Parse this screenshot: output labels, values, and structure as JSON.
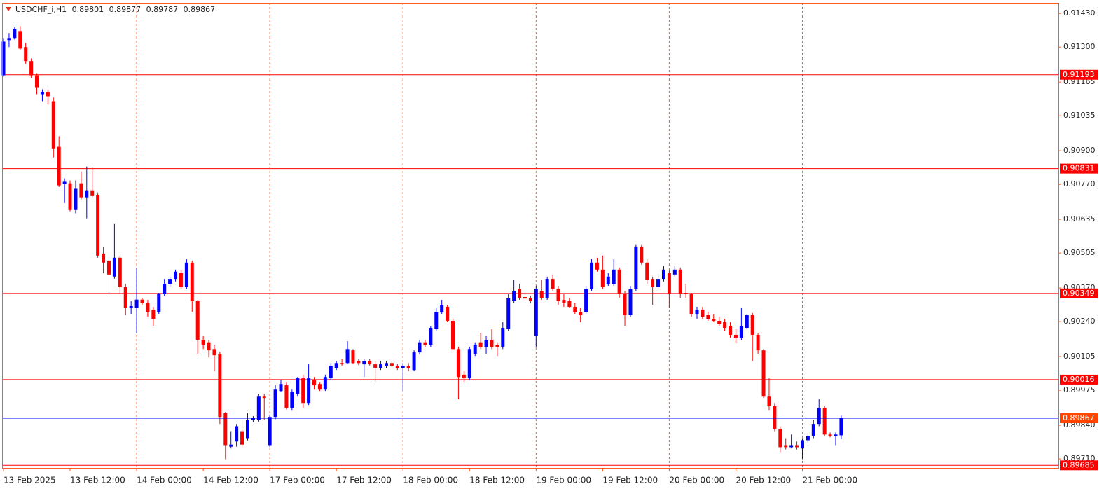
{
  "chart_data": {
    "type": "candlestick",
    "symbol": "USDCHF_i,H1",
    "categories": [
      "13 Feb 2025",
      null,
      null,
      null,
      null,
      null,
      null,
      null,
      null,
      null,
      null,
      null,
      "13 Feb 12:00",
      null,
      null,
      null,
      null,
      null,
      null,
      null,
      null,
      null,
      null,
      null,
      "14 Feb 00:00",
      null,
      null,
      null,
      null,
      null,
      null,
      null,
      null,
      null,
      null,
      null,
      "14 Feb 12:00",
      null,
      null,
      null,
      null,
      null,
      null,
      null,
      null,
      null,
      null,
      null,
      "17 Feb 00:00",
      null,
      null,
      null,
      null,
      null,
      null,
      null,
      null,
      null,
      null,
      null,
      "17 Feb 12:00",
      null,
      null,
      null,
      null,
      null,
      null,
      null,
      null,
      null,
      null,
      null,
      "18 Feb 00:00",
      null,
      null,
      null,
      null,
      null,
      null,
      null,
      null,
      null,
      null,
      null,
      "18 Feb 12:00",
      null,
      null,
      null,
      null,
      null,
      null,
      null,
      null,
      null,
      null,
      null,
      "19 Feb 00:00",
      null,
      null,
      null,
      null,
      null,
      null,
      null,
      null,
      null,
      null,
      null,
      "19 Feb 12:00",
      null,
      null,
      null,
      null,
      null,
      null,
      null,
      null,
      null,
      null,
      null,
      "20 Feb 00:00",
      null,
      null,
      null,
      null,
      null,
      null,
      null,
      null,
      null,
      null,
      null,
      "20 Feb 12:00",
      null,
      null,
      null,
      null,
      null,
      null,
      null,
      null,
      null,
      null,
      null,
      "21 Feb 00:00",
      null,
      null,
      null,
      null,
      null,
      null,
      null
    ],
    "open": [
      0.91191,
      0.91327,
      0.91335,
      0.91362,
      0.913,
      0.91246,
      0.91191,
      0.91118,
      0.91126,
      0.91091,
      0.90915,
      0.90771,
      0.90774,
      0.90671,
      0.90774,
      0.9072,
      0.90747,
      0.9073,
      0.90503,
      0.90476,
      0.90414,
      0.90487,
      0.90373,
      0.90292,
      0.90292,
      0.90325,
      0.90313,
      0.90286,
      0.90278,
      0.90346,
      0.90386,
      0.90405,
      0.90427,
      0.90373,
      0.90468,
      0.90319,
      0.9017,
      0.9016,
      0.90134,
      0.90116,
      0.89886,
      0.89757,
      0.89777,
      0.89817,
      0.8979,
      0.89859,
      0.89859,
      0.89953,
      0.89763,
      0.89872,
      0.89972,
      0.89994,
      0.89907,
      0.89961,
      0.90021,
      0.89926,
      0.90015,
      0.89999,
      0.8998,
      0.90021,
      0.90061,
      0.9008,
      0.9008,
      0.90129,
      0.90088,
      0.90075,
      0.90088,
      0.90075,
      0.90061,
      0.9007,
      0.9008,
      0.9007,
      0.90061,
      0.9007,
      0.90053,
      0.90121,
      0.9016,
      0.90151,
      0.90211,
      0.90278,
      0.90297,
      0.90243,
      0.90134,
      0.90035,
      0.90021,
      0.90116,
      0.9016,
      0.90143,
      0.9017,
      0.90151,
      0.90143,
      0.90211,
      0.90319,
      0.90367,
      0.90335,
      0.90332,
      0.90184,
      0.90359,
      0.90332,
      0.90405,
      0.90367,
      0.90324,
      0.90319,
      0.90297,
      0.90278,
      0.90278,
      0.90367,
      0.90468,
      0.90441,
      0.90386,
      0.90386,
      0.90441,
      0.90346,
      0.90265,
      0.90367,
      0.9053,
      0.90468,
      0.90405,
      0.90373,
      0.90405,
      0.90427,
      0.90422,
      0.90441,
      0.90351,
      0.90346,
      0.9027,
      0.90286,
      0.90265,
      0.90251,
      0.90243,
      0.90238,
      0.90224,
      0.90189,
      0.90178,
      0.90216,
      0.90265,
      0.90189,
      0.90129,
      0.89953,
      0.89913,
      0.89826,
      0.89763,
      0.89755,
      0.89763,
      0.8975,
      0.89782,
      0.89798,
      0.89845,
      0.89907,
      0.89804,
      0.89798,
      0.89801
    ],
    "high": [
      0.91335,
      0.91354,
      0.91376,
      0.91381,
      0.91316,
      0.91256,
      0.91199,
      0.91137,
      0.91137,
      0.91105,
      0.90956,
      0.90793,
      0.90785,
      0.90785,
      0.9082,
      0.90839,
      0.90834,
      0.90739,
      0.9053,
      0.90487,
      0.90617,
      0.90495,
      0.90386,
      0.90319,
      0.90446,
      0.90332,
      0.90324,
      0.90297,
      0.90351,
      0.90405,
      0.90414,
      0.90441,
      0.90438,
      0.90481,
      0.90476,
      0.90324,
      0.90184,
      0.9017,
      0.90151,
      0.90124,
      0.89891,
      0.89817,
      0.89845,
      0.89859,
      0.89886,
      0.89875,
      0.89961,
      0.89961,
      0.89881,
      0.89994,
      0.90015,
      0.90007,
      0.8998,
      0.90026,
      0.90035,
      0.90075,
      0.90026,
      0.90007,
      0.90035,
      0.9008,
      0.90088,
      0.90097,
      0.90164,
      0.90134,
      0.90097,
      0.90097,
      0.90097,
      0.90088,
      0.90088,
      0.90088,
      0.90086,
      0.90078,
      0.9008,
      0.9008,
      0.90129,
      0.9017,
      0.9017,
      0.90224,
      0.90292,
      0.90324,
      0.90305,
      0.90251,
      0.90143,
      0.90048,
      0.90143,
      0.9016,
      0.90197,
      0.90184,
      0.90211,
      0.9016,
      0.90238,
      0.90346,
      0.904,
      0.90386,
      0.90346,
      0.9034,
      0.90378,
      0.904,
      0.90414,
      0.90422,
      0.90378,
      0.90346,
      0.90332,
      0.90313,
      0.90292,
      0.90378,
      0.90481,
      0.90487,
      0.90495,
      0.90427,
      0.90481,
      0.90449,
      0.90359,
      0.90378,
      0.90536,
      0.90536,
      0.90481,
      0.90414,
      0.90422,
      0.90455,
      0.90441,
      0.90455,
      0.90449,
      0.90386,
      0.90351,
      0.90297,
      0.90297,
      0.90278,
      0.9027,
      0.90259,
      0.90251,
      0.90238,
      0.90211,
      0.90292,
      0.9027,
      0.90273,
      0.90197,
      0.90134,
      0.90021,
      0.89926,
      0.89836,
      0.8979,
      0.89804,
      0.89777,
      0.8979,
      0.89809,
      0.89859,
      0.8994,
      0.89913,
      0.89812,
      0.89812,
      0.89877
    ],
    "low": [
      0.91186,
      0.913,
      0.91329,
      0.91289,
      0.91235,
      0.91181,
      0.91118,
      0.91091,
      0.91078,
      0.90874,
      0.9076,
      0.90698,
      0.90666,
      0.90658,
      0.90712,
      0.90639,
      0.9072,
      0.90487,
      0.90427,
      0.90351,
      0.90406,
      0.90346,
      0.90265,
      0.9027,
      0.90197,
      0.90305,
      0.90259,
      0.90224,
      0.9027,
      0.9034,
      0.90373,
      0.90395,
      0.90367,
      0.90367,
      0.90278,
      0.90116,
      0.90134,
      0.90102,
      0.90048,
      0.89845,
      0.89709,
      0.8975,
      0.89757,
      0.89761,
      0.89781,
      0.89851,
      0.89853,
      0.89859,
      0.89755,
      0.89863,
      0.89967,
      0.89901,
      0.89899,
      0.89953,
      0.89907,
      0.89918,
      0.8998,
      0.89972,
      0.89972,
      0.90013,
      0.90053,
      0.9007,
      0.90075,
      0.90075,
      0.90072,
      0.90026,
      0.9007,
      0.90007,
      0.90053,
      0.90061,
      0.90064,
      0.90053,
      0.89972,
      0.90048,
      0.90048,
      0.90113,
      0.90143,
      0.90143,
      0.90205,
      0.9027,
      0.90238,
      0.90129,
      0.8994,
      0.90007,
      0.90013,
      0.90107,
      0.90134,
      0.90116,
      0.90134,
      0.90107,
      0.90134,
      0.90205,
      0.90313,
      0.90324,
      0.90319,
      0.90311,
      0.90143,
      0.90324,
      0.90324,
      0.90359,
      0.90305,
      0.90297,
      0.90292,
      0.9027,
      0.90238,
      0.9027,
      0.90359,
      0.90433,
      0.90367,
      0.90378,
      0.90378,
      0.90332,
      0.90224,
      0.90259,
      0.90359,
      0.9046,
      0.90386,
      0.90305,
      0.90367,
      0.90395,
      0.90292,
      0.90414,
      0.90332,
      0.90332,
      0.90259,
      0.90251,
      0.90248,
      0.90243,
      0.90238,
      0.90224,
      0.90205,
      0.90178,
      0.90157,
      0.9017,
      0.90211,
      0.90088,
      0.90116,
      0.89945,
      0.89899,
      0.89817,
      0.89736,
      0.89746,
      0.8975,
      0.89746,
      0.89709,
      0.89771,
      0.8979,
      0.89836,
      0.89798,
      0.89793,
      0.89763,
      0.89787
    ],
    "close": [
      0.91321,
      0.91335,
      0.9137,
      0.91294,
      0.91246,
      0.91191,
      0.91145,
      0.91126,
      0.9111,
      0.90909,
      0.90766,
      0.9078,
      0.90671,
      0.90753,
      0.9072,
      0.90747,
      0.90725,
      0.90495,
      0.90468,
      0.90422,
      0.90487,
      0.90373,
      0.90292,
      0.903,
      0.90325,
      0.90313,
      0.90278,
      0.90251,
      0.90346,
      0.90386,
      0.90405,
      0.90433,
      0.90373,
      0.90468,
      0.90319,
      0.9017,
      0.90151,
      0.90129,
      0.9011,
      0.89872,
      0.89763,
      0.89765,
      0.89836,
      0.89765,
      0.89859,
      0.89867,
      0.89953,
      0.89945,
      0.89872,
      0.8998,
      0.89999,
      0.89907,
      0.89967,
      0.90021,
      0.89926,
      0.90021,
      0.89994,
      0.8998,
      0.90026,
      0.9007,
      0.9008,
      0.90075,
      0.90134,
      0.9008,
      0.9008,
      0.90088,
      0.90075,
      0.90061,
      0.90075,
      0.9008,
      0.9007,
      0.90061,
      0.9007,
      0.90059,
      0.90121,
      0.9016,
      0.90151,
      0.90216,
      0.90278,
      0.90305,
      0.90243,
      0.90134,
      0.90026,
      0.90021,
      0.90134,
      0.90151,
      0.90143,
      0.9017,
      0.90143,
      0.90143,
      0.90216,
      0.90332,
      0.90359,
      0.90332,
      0.90329,
      0.90319,
      0.90367,
      0.90332,
      0.90405,
      0.90367,
      0.90319,
      0.90313,
      0.90297,
      0.90278,
      0.90265,
      0.90367,
      0.90468,
      0.90441,
      0.90373,
      0.90414,
      0.90441,
      0.90346,
      0.90265,
      0.90367,
      0.9053,
      0.90468,
      0.904,
      0.90373,
      0.90405,
      0.90441,
      0.90346,
      0.90441,
      0.90346,
      0.90346,
      0.9027,
      0.90286,
      0.90259,
      0.90251,
      0.90243,
      0.90232,
      0.90216,
      0.90189,
      0.90178,
      0.90224,
      0.90265,
      0.90189,
      0.90129,
      0.89953,
      0.89913,
      0.89826,
      0.89755,
      0.89755,
      0.89763,
      0.89755,
      0.89782,
      0.89798,
      0.89845,
      0.89907,
      0.89804,
      0.89798,
      0.89804,
      0.89867
    ],
    "up_color": "#0000ff",
    "down_color": "#ff0000",
    "ylim": [
      0.89675,
      0.91471
    ],
    "yticks": [
      {
        "value": 0.9143,
        "label": "0.91430"
      },
      {
        "value": 0.913,
        "label": "0.91300"
      },
      0.91165,
      0.91035,
      {
        "value": 0.909,
        "label": "0.90900"
      },
      {
        "value": 0.9077,
        "label": "0.90770"
      },
      0.90635,
      0.90505,
      {
        "value": 0.9037,
        "label": "0.90370"
      },
      {
        "value": 0.9024,
        "label": "0.90240"
      },
      0.90105,
      0.89975,
      {
        "value": 0.8984,
        "label": "0.89840"
      },
      {
        "value": 0.8971,
        "label": "0.89710"
      }
    ],
    "grid": true,
    "levels": [
      0.91193,
      0.90831,
      0.90349,
      0.90016,
      0.89685
    ],
    "level_color": "#ff0000",
    "bid_line_color": "#0000ff",
    "bid_label_color": "#ff4500"
  }
}
